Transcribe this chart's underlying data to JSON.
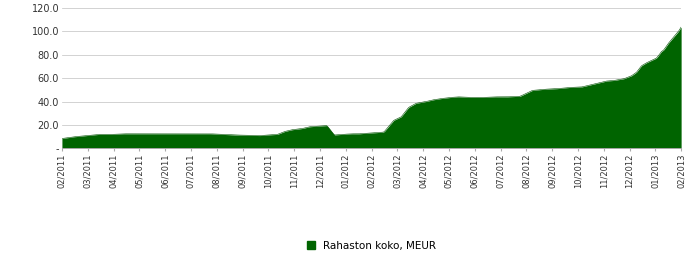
{
  "x_labels": [
    "02/2011",
    "03/2011",
    "04/2011",
    "05/2011",
    "06/2011",
    "07/2011",
    "08/2011",
    "09/2011",
    "10/2011",
    "11/2011",
    "12/2011",
    "01/2012",
    "02/2012",
    "03/2012",
    "04/2012",
    "05/2012",
    "06/2012",
    "07/2012",
    "08/2012",
    "09/2012",
    "10/2012",
    "11/2012",
    "12/2012",
    "01/2013",
    "02/2013"
  ],
  "fill_color": "#006400",
  "line_color": "#005000",
  "background_color": "#ffffff",
  "grid_color": "#c0c0c0",
  "ylim": [
    0,
    120.0
  ],
  "ytick_labels": [
    "-",
    "20.0",
    "40.0",
    "60.0",
    "80.0",
    "100.0",
    "120.0"
  ],
  "legend_label": "Rahaston koko, MEUR",
  "legend_color": "#006400",
  "key_points_x": [
    0,
    0.5,
    1,
    1.5,
    2,
    2.5,
    3,
    4,
    5,
    6,
    7,
    8,
    8.3,
    8.7,
    9,
    9.3,
    9.7,
    10,
    10.3,
    10.7,
    11,
    11.3,
    11.7,
    12,
    12.3,
    12.7,
    13,
    13.2,
    13.4,
    13.7,
    14,
    14.3,
    14.7,
    15,
    15.3,
    15.7,
    16,
    16.5,
    17,
    17.5,
    18,
    18.5,
    19,
    19.5,
    20,
    20.5,
    21,
    21.5,
    22,
    22.3,
    22.7,
    23,
    23.2,
    23.4,
    23.6,
    23.8,
    24,
    24.1,
    24.2,
    24.3,
    24.5,
    24.7,
    24.9,
    25
  ],
  "key_points_y": [
    8.5,
    10.0,
    11.0,
    12.0,
    12.0,
    12.5,
    12.5,
    12.5,
    12.5,
    12.5,
    11.5,
    11.0,
    11.5,
    12.0,
    14.5,
    16.0,
    17.0,
    18.5,
    19.0,
    19.5,
    11.5,
    12.0,
    12.5,
    12.5,
    13.0,
    13.5,
    14.0,
    19.0,
    24.0,
    27.0,
    35.0,
    38.5,
    40.0,
    41.5,
    42.5,
    43.5,
    44.0,
    43.5,
    43.5,
    44.0,
    44.0,
    44.5,
    49.5,
    50.5,
    51.0,
    52.0,
    52.5,
    55.0,
    57.5,
    58.0,
    59.5,
    62.0,
    65.0,
    70.5,
    73.0,
    75.0,
    77.0,
    79.5,
    82.5,
    84.0,
    90.0,
    95.0,
    100.0,
    103.5
  ]
}
